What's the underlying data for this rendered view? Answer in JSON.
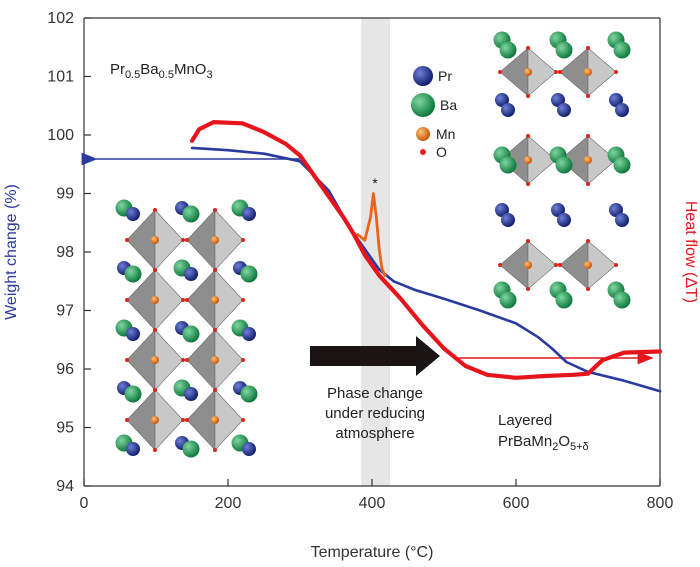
{
  "chart_data": {
    "type": "line",
    "xlabel": "Temperature (°C)",
    "ylabel": "Weight change (%)",
    "ylabel_right": "Heat flow (ΔT)",
    "xlim": [
      0,
      800
    ],
    "ylim": [
      94,
      102
    ],
    "x_ticks": [
      0,
      200,
      400,
      600,
      800
    ],
    "y_ticks": [
      94,
      95,
      96,
      97,
      98,
      99,
      100,
      101,
      102
    ],
    "grid": false,
    "phase_band": [
      385,
      425
    ],
    "series": [
      {
        "axis": "left",
        "color": "#2b3a9e",
        "points": [
          [
            150,
            99.78
          ],
          [
            200,
            99.74
          ],
          [
            250,
            99.68
          ],
          [
            300,
            99.55
          ],
          [
            340,
            99.05
          ],
          [
            370,
            98.4
          ],
          [
            390,
            98.05
          ],
          [
            410,
            97.7
          ],
          [
            430,
            97.5
          ],
          [
            460,
            97.35
          ],
          [
            500,
            97.2
          ],
          [
            550,
            97.0
          ],
          [
            600,
            96.78
          ],
          [
            630,
            96.55
          ],
          [
            650,
            96.35
          ],
          [
            670,
            96.12
          ],
          [
            700,
            95.95
          ],
          [
            750,
            95.8
          ],
          [
            800,
            95.62
          ]
        ]
      },
      {
        "axis": "right",
        "color": "#e8141c",
        "points": [
          [
            150,
            99.9
          ],
          [
            160,
            100.1
          ],
          [
            180,
            100.22
          ],
          [
            220,
            100.2
          ],
          [
            250,
            100.05
          ],
          [
            280,
            99.85
          ],
          [
            300,
            99.65
          ],
          [
            320,
            99.3
          ],
          [
            340,
            98.95
          ],
          [
            360,
            98.6
          ],
          [
            375,
            98.3
          ],
          [
            390,
            97.95
          ],
          [
            410,
            97.6
          ],
          [
            440,
            97.2
          ],
          [
            470,
            96.75
          ],
          [
            500,
            96.35
          ],
          [
            530,
            96.05
          ],
          [
            560,
            95.9
          ],
          [
            600,
            95.85
          ],
          [
            640,
            95.88
          ],
          [
            680,
            95.9
          ],
          [
            700,
            95.92
          ],
          [
            720,
            96.15
          ],
          [
            750,
            96.28
          ],
          [
            800,
            96.3
          ]
        ]
      },
      {
        "axis": "right",
        "color": "#e8641c",
        "points": [
          [
            380,
            98.3
          ],
          [
            390,
            98.2
          ],
          [
            398,
            98.6
          ],
          [
            402,
            99.0
          ],
          [
            406,
            98.6
          ],
          [
            410,
            98.05
          ],
          [
            414,
            97.7
          ],
          [
            418,
            97.6
          ]
        ]
      }
    ],
    "annotations": {
      "composition": [
        "Pr",
        "0.5",
        "Ba",
        "0.5",
        "MnO",
        "3"
      ],
      "product_line1": "Layered",
      "product_line2": [
        "PrBaMn",
        "2",
        "O",
        "5+δ"
      ],
      "transition_lines": [
        "Phase change",
        "under reducing",
        "atmosphere"
      ],
      "peak_marker": "*"
    },
    "legend": {
      "items": [
        {
          "label": "Pr",
          "color": "#1c2f8a"
        },
        {
          "label": "Ba",
          "color": "#1e9a55"
        },
        {
          "label": "Mn",
          "color": "#ef7a16"
        },
        {
          "label": "O",
          "color": "#e02418"
        }
      ],
      "placement": "top-center"
    }
  }
}
